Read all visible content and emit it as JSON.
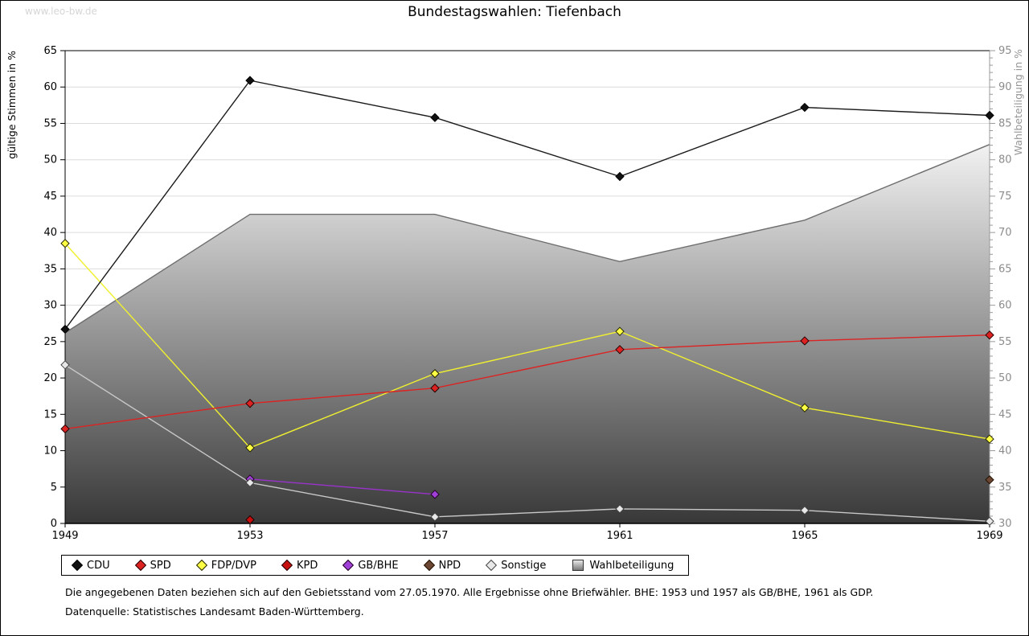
{
  "page": {
    "watermark": "www.leo-bw.de",
    "title": "Bundestagswahlen: Tiefenbach"
  },
  "chart_data": {
    "type": "line",
    "title": "Bundestagswahlen: Tiefenbach",
    "x": [
      1949,
      1953,
      1957,
      1961,
      1965,
      1969
    ],
    "left_axis": {
      "label": "gültige Stimmen in %",
      "min": 0,
      "max": 65,
      "tick_step": 5
    },
    "right_axis": {
      "label": "Wahlbeteiligung in %",
      "min": 30,
      "max": 95,
      "tick_step": 5,
      "minor_step": 1
    },
    "grid": true,
    "legend_position": "bottom",
    "series": [
      {
        "name": "CDU",
        "line": "#1a1a1a",
        "fill": "#111111",
        "stroke": "#000000",
        "values": [
          26.7,
          60.9,
          55.8,
          47.7,
          57.2,
          56.1
        ]
      },
      {
        "name": "SPD",
        "line": "#dd2222",
        "fill": "#dd2222",
        "stroke": "#220000",
        "values": [
          13.0,
          16.5,
          18.6,
          23.9,
          25.1,
          25.9
        ]
      },
      {
        "name": "FDP/DVP",
        "line": "#f0f030",
        "fill": "#ffff44",
        "stroke": "#222200",
        "values": [
          38.5,
          10.4,
          20.6,
          26.4,
          15.9,
          11.6
        ]
      },
      {
        "name": "KPD",
        "line": "#c00000",
        "fill": "#c80f0f",
        "stroke": "#220000",
        "values": [
          null,
          0.5,
          null,
          null,
          null,
          null
        ]
      },
      {
        "name": "GB/BHE",
        "line": "#9933cc",
        "fill": "#a040d8",
        "stroke": "#220022",
        "values": [
          null,
          6.1,
          4.0,
          null,
          null,
          null
        ]
      },
      {
        "name": "NPD",
        "line": "#6b4632",
        "fill": "#6b4632",
        "stroke": "#221100",
        "values": [
          null,
          null,
          null,
          null,
          null,
          6.0
        ]
      },
      {
        "name": "Sonstige",
        "line": "#c8c8c8",
        "fill": "#e8e8e8",
        "stroke": "#444444",
        "values": [
          21.8,
          5.6,
          0.9,
          2.0,
          1.8,
          0.3
        ]
      }
    ],
    "area_series": {
      "name": "Wahlbeteiligung",
      "axis": "right",
      "values": [
        56.2,
        72.5,
        72.5,
        66.0,
        71.7,
        82.1
      ],
      "fill_top": "#f2f2f2",
      "fill_bottom": "#383838",
      "edge_color": "#6e6e6e"
    }
  },
  "notes": {
    "line1": "Die angegebenen Daten beziehen sich auf den Gebietsstand vom 27.05.1970. Alle Ergebnisse ohne Briefwähler. BHE: 1953 und 1957 als GB/BHE, 1961 als GDP.",
    "line2": "Datenquelle: Statistisches Landesamt Baden-Württemberg."
  },
  "colors": {
    "grid": "#dcdcdc",
    "axis_left": "#000000",
    "axis_right": "#999999",
    "right_tick_text": "#8c8c8c"
  }
}
